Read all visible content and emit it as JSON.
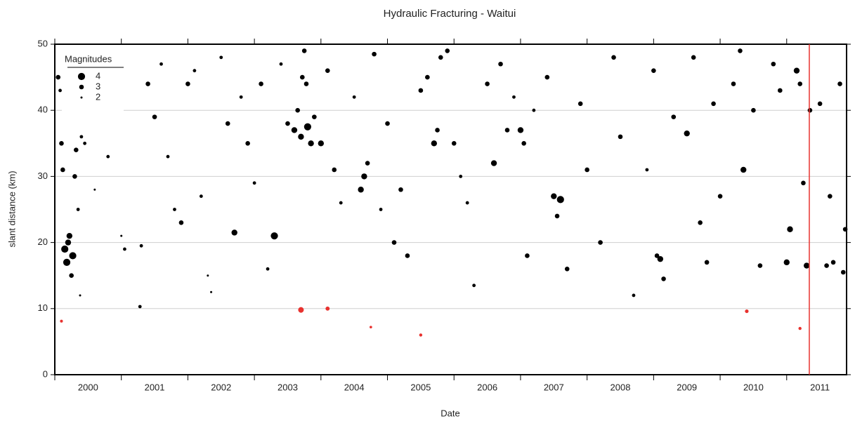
{
  "chart_data": {
    "type": "scatter",
    "title": "Hydraulic Fracturing - Waitui",
    "xlabel": "Date",
    "ylabel": "slant distance (km)",
    "xlim": [
      2000,
      2011.9
    ],
    "xticks": [
      2000,
      2001,
      2002,
      2003,
      2004,
      2005,
      2006,
      2007,
      2008,
      2009,
      2010,
      2011
    ],
    "ylim": [
      0,
      50
    ],
    "yticks": [
      0,
      10,
      20,
      30,
      40,
      50
    ],
    "grid": true,
    "legend": {
      "title": "Magnitudes",
      "entries": [
        4,
        3,
        2
      ],
      "position": "upper left"
    },
    "vline": {
      "value": 2011.34,
      "color": "#e8322f"
    },
    "series": [
      {
        "color": "#000000",
        "x": [
          2000.05,
          2000.08,
          2000.1,
          2000.12,
          2000.15,
          2000.18,
          2000.2,
          2000.22,
          2000.25,
          2000.27,
          2000.3,
          2000.32,
          2000.35,
          2000.38,
          2000.4,
          2000.45,
          2000.6,
          2000.8,
          2001.0,
          2000.9,
          2001.05,
          2001.3,
          2001.28,
          2001.4,
          2001.5,
          2001.6,
          2001.7,
          2001.8,
          2001.9,
          2002.0,
          2002.1,
          2002.2,
          2002.3,
          2002.35,
          2002.5,
          2002.6,
          2002.7,
          2002.8,
          2002.9,
          2003.0,
          2003.1,
          2003.2,
          2003.3,
          2003.4,
          2003.5,
          2003.6,
          2003.65,
          2003.7,
          2003.72,
          2003.75,
          2003.78,
          2003.8,
          2003.85,
          2003.9,
          2004.0,
          2004.1,
          2004.2,
          2004.3,
          2004.5,
          2004.6,
          2004.65,
          2004.7,
          2004.8,
          2004.9,
          2005.0,
          2005.1,
          2005.2,
          2005.3,
          2005.5,
          2005.6,
          2005.7,
          2005.75,
          2005.8,
          2005.9,
          2006.0,
          2006.1,
          2006.2,
          2006.3,
          2006.5,
          2006.6,
          2006.7,
          2006.8,
          2006.9,
          2007.0,
          2007.05,
          2007.1,
          2007.2,
          2007.4,
          2007.5,
          2007.55,
          2007.6,
          2007.7,
          2007.9,
          2008.0,
          2008.2,
          2008.4,
          2008.5,
          2008.7,
          2008.9,
          2009.0,
          2009.05,
          2009.1,
          2009.15,
          2009.3,
          2009.5,
          2009.6,
          2009.7,
          2009.8,
          2009.9,
          2010.0,
          2010.2,
          2010.3,
          2010.35,
          2010.5,
          2010.6,
          2010.8,
          2010.9,
          2011.0,
          2011.05,
          2011.15,
          2011.2,
          2011.25,
          2011.3,
          2011.35,
          2011.5,
          2011.6,
          2011.65,
          2011.7,
          2011.8,
          2011.85,
          2011.88
        ],
        "values": [
          45,
          43,
          35,
          31,
          19,
          17,
          20,
          21,
          15,
          18,
          30,
          34,
          25,
          12,
          36,
          35,
          28,
          33,
          21,
          45,
          19,
          19.5,
          10.3,
          44,
          39,
          47,
          33,
          25,
          23,
          44,
          46,
          27,
          15,
          12.5,
          48,
          38,
          21.5,
          42,
          35,
          29,
          44,
          16,
          21,
          47,
          38,
          37,
          40,
          36,
          45,
          49,
          44,
          37.5,
          35,
          39,
          35,
          46,
          31,
          26,
          42,
          28,
          30,
          32,
          48.5,
          25,
          38,
          20,
          28,
          18,
          43,
          45,
          35,
          37,
          48,
          49,
          35,
          30,
          26,
          13.5,
          44,
          32,
          47,
          37,
          42,
          37,
          35,
          18,
          40,
          45,
          27,
          24,
          26.5,
          16,
          41,
          31,
          20,
          48,
          36,
          12,
          31,
          46,
          18,
          17.5,
          14.5,
          39,
          36.5,
          48,
          23,
          17,
          41,
          27,
          44,
          49,
          31,
          40,
          16.5,
          47,
          43,
          17,
          22,
          46,
          44,
          29,
          16.5,
          40,
          41,
          16.5,
          27,
          17,
          44,
          15.5,
          22
        ],
        "sizes": [
          3,
          2.5,
          3,
          3,
          4,
          4,
          3.5,
          3.5,
          3,
          4,
          3,
          3,
          2.5,
          2,
          2.5,
          2.5,
          2,
          2.5,
          2,
          2,
          2.5,
          2.5,
          2.5,
          3,
          3,
          2.5,
          2.5,
          2.5,
          3,
          3,
          2.5,
          2.5,
          2,
          2,
          2.5,
          3,
          3.5,
          2.5,
          3,
          2.5,
          3,
          2.5,
          4,
          2.5,
          3,
          3.5,
          3,
          3.5,
          3,
          3,
          3,
          4,
          3.5,
          3,
          3.5,
          3,
          3,
          2.5,
          2.5,
          3.5,
          3.5,
          3,
          3,
          2.5,
          3,
          3,
          3,
          3,
          3,
          3,
          3.5,
          3,
          3,
          3,
          3,
          2.5,
          2.5,
          2.5,
          3,
          3.5,
          3,
          3,
          2.5,
          3.5,
          3,
          3,
          2.5,
          3,
          3.5,
          3,
          4,
          3,
          3,
          3,
          3,
          3,
          3,
          2.5,
          2.5,
          3,
          3,
          3.5,
          3,
          3,
          3.5,
          3,
          3,
          3,
          3,
          3,
          3,
          3,
          3.5,
          3,
          3,
          3,
          3,
          3.5,
          3.5,
          3.5,
          3,
          3,
          3.5,
          3,
          3,
          3,
          3,
          3,
          3,
          3,
          3
        ]
      },
      {
        "color": "#e8322f",
        "x": [
          2000.1,
          2003.7,
          2004.1,
          2004.75,
          2005.5,
          2010.4,
          2011.2
        ],
        "values": [
          8.1,
          9.8,
          10,
          7.2,
          6,
          9.6,
          7
        ],
        "sizes": [
          2.3,
          3.4,
          2.8,
          2.2,
          2.4,
          2.6,
          2.4
        ]
      }
    ]
  }
}
